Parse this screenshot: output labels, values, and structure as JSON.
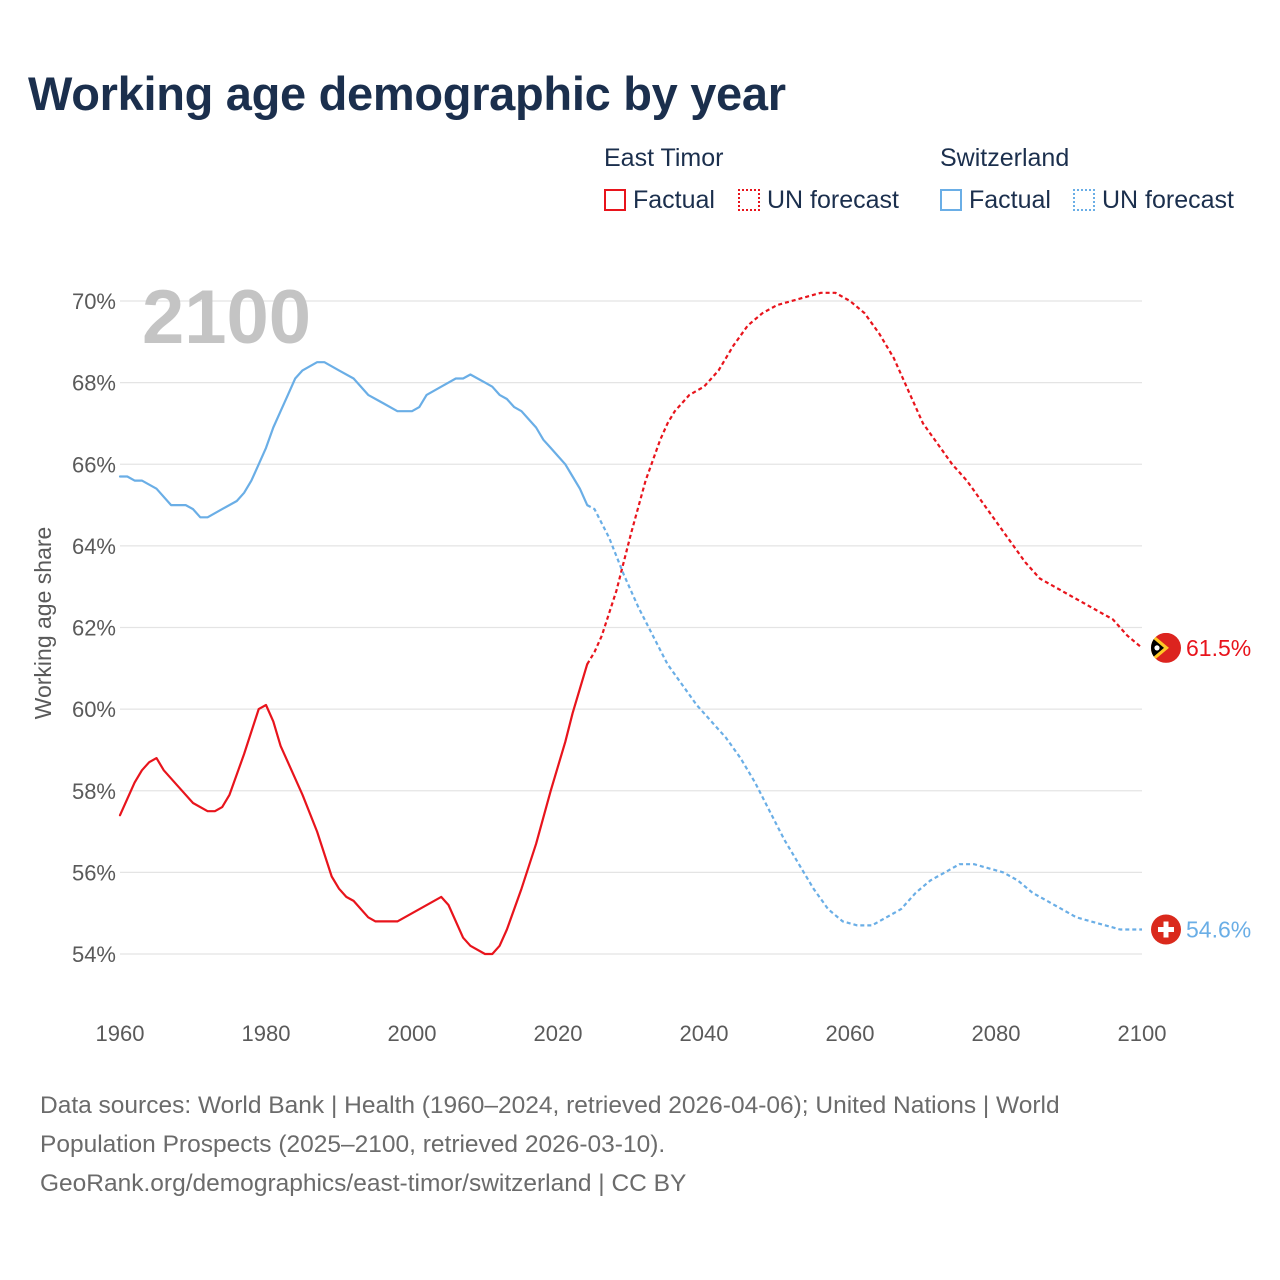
{
  "title": "Working age demographic by year",
  "legend": {
    "groups": [
      {
        "country": "East Timor",
        "factual_label": "Factual",
        "forecast_label": "UN forecast",
        "color": "#e8141c"
      },
      {
        "country": "Switzerland",
        "factual_label": "Factual",
        "forecast_label": "UN forecast",
        "color": "#6aaee6"
      }
    ]
  },
  "year_display": "2100",
  "chart_data": {
    "type": "line",
    "title": "Working age demographic by year",
    "xlabel": "",
    "ylabel": "Working age share",
    "xlim": [
      1960,
      2100
    ],
    "ylim": [
      54,
      70
    ],
    "x_ticks": [
      1960,
      1980,
      2000,
      2020,
      2040,
      2060,
      2080,
      2100
    ],
    "y_ticks": [
      54,
      56,
      58,
      60,
      62,
      64,
      66,
      68,
      70
    ],
    "y_tick_labels": [
      "54%",
      "56%",
      "58%",
      "60%",
      "62%",
      "64%",
      "66%",
      "68%",
      "70%"
    ],
    "grid": true,
    "factual_range": [
      1960,
      2024
    ],
    "forecast_range": [
      2024,
      2100
    ],
    "series": [
      {
        "name": "East Timor",
        "color": "#e8141c",
        "end_label": "61.5%",
        "x": [
          1960,
          1962,
          1963,
          1964,
          1965,
          1966,
          1968,
          1970,
          1972,
          1973,
          1974,
          1975,
          1977,
          1979,
          1980,
          1981,
          1982,
          1983,
          1985,
          1987,
          1989,
          1990,
          1991,
          1992,
          1994,
          1995,
          1998,
          2004,
          2005,
          2007,
          2008,
          2010,
          2011,
          2012,
          2013,
          2015,
          2017,
          2019,
          2021,
          2022,
          2023,
          2024,
          2025,
          2026,
          2028,
          2030,
          2032,
          2034,
          2035,
          2036,
          2038,
          2040,
          2042,
          2044,
          2046,
          2048,
          2050,
          2052,
          2054,
          2056,
          2058,
          2060,
          2062,
          2064,
          2066,
          2068,
          2070,
          2072,
          2074,
          2076,
          2078,
          2080,
          2082,
          2084,
          2086,
          2088,
          2090,
          2092,
          2094,
          2096,
          2098,
          2100
        ],
        "y": [
          57.4,
          58.2,
          58.5,
          58.7,
          58.8,
          58.5,
          58.1,
          57.7,
          57.5,
          57.5,
          57.6,
          57.9,
          58.9,
          60.0,
          60.1,
          59.7,
          59.1,
          58.7,
          57.9,
          57.0,
          55.9,
          55.6,
          55.4,
          55.3,
          54.9,
          54.8,
          54.8,
          55.4,
          55.2,
          54.4,
          54.2,
          54.0,
          54.0,
          54.2,
          54.6,
          55.6,
          56.7,
          58.0,
          59.2,
          59.9,
          60.5,
          61.1,
          61.4,
          61.8,
          62.9,
          64.3,
          65.6,
          66.6,
          67.0,
          67.3,
          67.7,
          67.9,
          68.3,
          68.9,
          69.4,
          69.7,
          69.9,
          70.0,
          70.1,
          70.2,
          70.2,
          70.0,
          69.7,
          69.2,
          68.6,
          67.8,
          67.0,
          66.5,
          66.0,
          65.6,
          65.1,
          64.6,
          64.1,
          63.6,
          63.2,
          63.0,
          62.8,
          62.6,
          62.4,
          62.2,
          61.8,
          61.5
        ]
      },
      {
        "name": "Switzerland",
        "color": "#6aaee6",
        "end_label": "54.6%",
        "x": [
          1960,
          1961,
          1962,
          1963,
          1965,
          1967,
          1969,
          1970,
          1971,
          1972,
          1974,
          1976,
          1977,
          1978,
          1979,
          1980,
          1981,
          1982,
          1983,
          1984,
          1985,
          1986,
          1987,
          1988,
          1990,
          1992,
          1994,
          1996,
          1998,
          2000,
          2001,
          2002,
          2004,
          2006,
          2007,
          2008,
          2010,
          2011,
          2012,
          2013,
          2014,
          2015,
          2016,
          2017,
          2018,
          2019,
          2020,
          2021,
          2022,
          2023,
          2024,
          2025,
          2027,
          2029,
          2031,
          2033,
          2035,
          2037,
          2039,
          2041,
          2043,
          2045,
          2047,
          2049,
          2051,
          2053,
          2055,
          2057,
          2059,
          2061,
          2063,
          2065,
          2067,
          2069,
          2071,
          2073,
          2075,
          2077,
          2079,
          2081,
          2083,
          2085,
          2087,
          2089,
          2091,
          2093,
          2095,
          2097,
          2100
        ],
        "y": [
          65.7,
          65.7,
          65.6,
          65.6,
          65.4,
          65.0,
          65.0,
          64.9,
          64.7,
          64.7,
          64.9,
          65.1,
          65.3,
          65.6,
          66.0,
          66.4,
          66.9,
          67.3,
          67.7,
          68.1,
          68.3,
          68.4,
          68.5,
          68.5,
          68.3,
          68.1,
          67.7,
          67.5,
          67.3,
          67.3,
          67.4,
          67.7,
          67.9,
          68.1,
          68.1,
          68.2,
          68.0,
          67.9,
          67.7,
          67.6,
          67.4,
          67.3,
          67.1,
          66.9,
          66.6,
          66.4,
          66.2,
          66.0,
          65.7,
          65.4,
          65.0,
          64.9,
          64.2,
          63.3,
          62.5,
          61.8,
          61.1,
          60.6,
          60.1,
          59.7,
          59.3,
          58.8,
          58.2,
          57.5,
          56.8,
          56.2,
          55.6,
          55.1,
          54.8,
          54.7,
          54.7,
          54.9,
          55.1,
          55.5,
          55.8,
          56.0,
          56.2,
          56.2,
          56.1,
          56.0,
          55.8,
          55.5,
          55.3,
          55.1,
          54.9,
          54.8,
          54.7,
          54.6,
          54.6
        ]
      }
    ]
  },
  "source_lines": [
    "Data sources: World Bank | Health (1960–2024, retrieved 2026-04-06); United Nations | World",
    "Population Prospects (2025–2100, retrieved 2026-03-10).",
    "GeoRank.org/demographics/east-timor/switzerland | CC BY"
  ],
  "flags": {
    "east_timor": "east-timor-flag-icon",
    "switzerland": "switzerland-flag-icon"
  }
}
